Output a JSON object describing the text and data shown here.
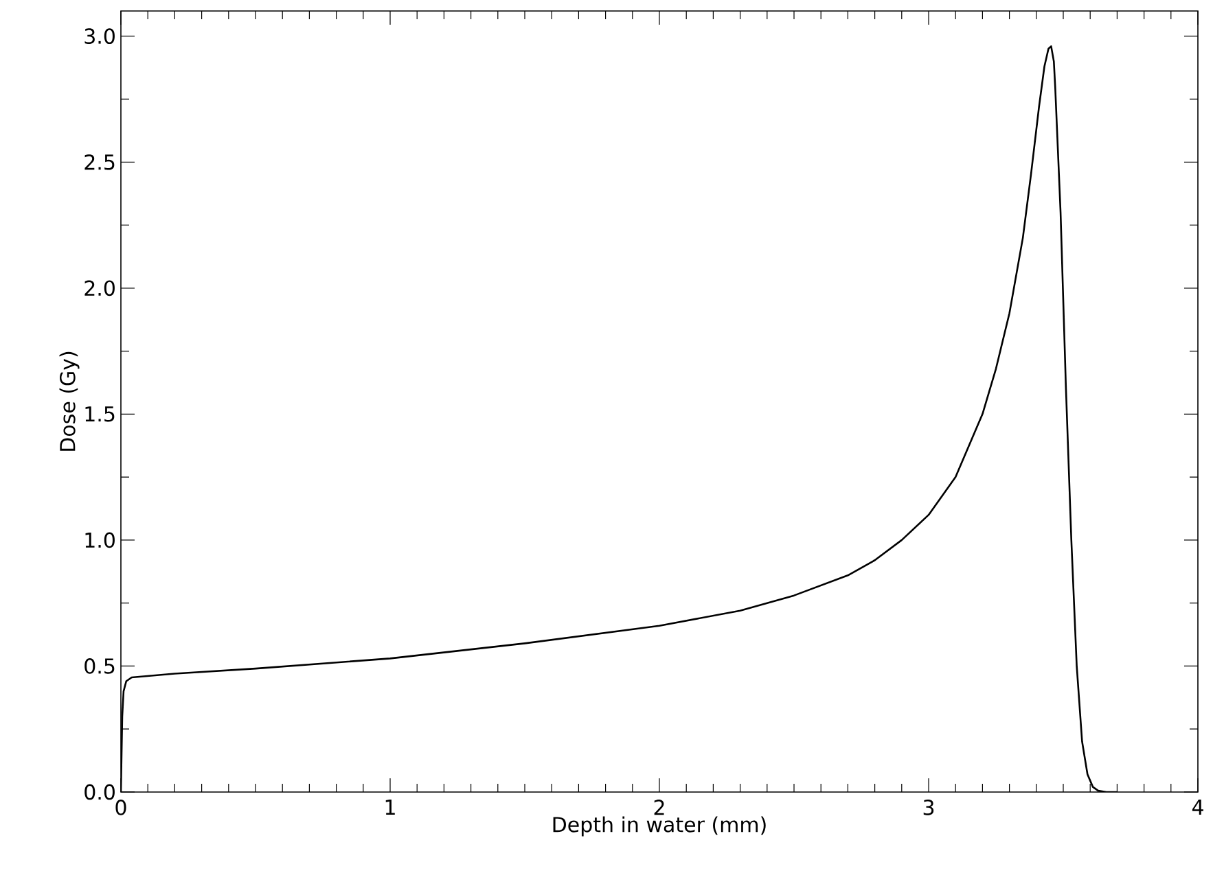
{
  "chart_data": {
    "type": "line",
    "xlabel": "Depth in water (mm)",
    "ylabel": "Dose (Gy)",
    "xlim": [
      0,
      4
    ],
    "ylim": [
      0,
      3.1
    ],
    "xticks": [
      0,
      1,
      2,
      3,
      4
    ],
    "yticks": [
      {
        "value": 0,
        "label": "0.0"
      },
      {
        "value": 0.5,
        "label": "0.5"
      },
      {
        "value": 1,
        "label": "1.0"
      },
      {
        "value": 1.5,
        "label": "1.5"
      },
      {
        "value": 2,
        "label": "2.0"
      },
      {
        "value": 2.5,
        "label": "2.5"
      },
      {
        "value": 3,
        "label": "3.0"
      }
    ],
    "grid": false,
    "marker": "none",
    "line_style": "solid",
    "series": [
      {
        "color": "#000000",
        "x": [
          0,
          0.005,
          0.01,
          0.02,
          0.04,
          0.2,
          0.5,
          1.0,
          1.5,
          2.0,
          2.3,
          2.5,
          2.7,
          2.8,
          2.9,
          3.0,
          3.1,
          3.2,
          3.25,
          3.3,
          3.35,
          3.38,
          3.41,
          3.43,
          3.445,
          3.455,
          3.465,
          3.47,
          3.49,
          3.51,
          3.53,
          3.55,
          3.57,
          3.59,
          3.61,
          3.63,
          3.66,
          3.7
        ],
        "values": [
          0.0,
          0.3,
          0.4,
          0.44,
          0.455,
          0.47,
          0.49,
          0.53,
          0.59,
          0.66,
          0.72,
          0.78,
          0.86,
          0.92,
          1.0,
          1.1,
          1.25,
          1.5,
          1.68,
          1.9,
          2.2,
          2.45,
          2.72,
          2.88,
          2.95,
          2.96,
          2.9,
          2.8,
          2.3,
          1.6,
          1.0,
          0.5,
          0.2,
          0.07,
          0.02,
          0.005,
          0.0,
          0.0
        ]
      }
    ]
  }
}
